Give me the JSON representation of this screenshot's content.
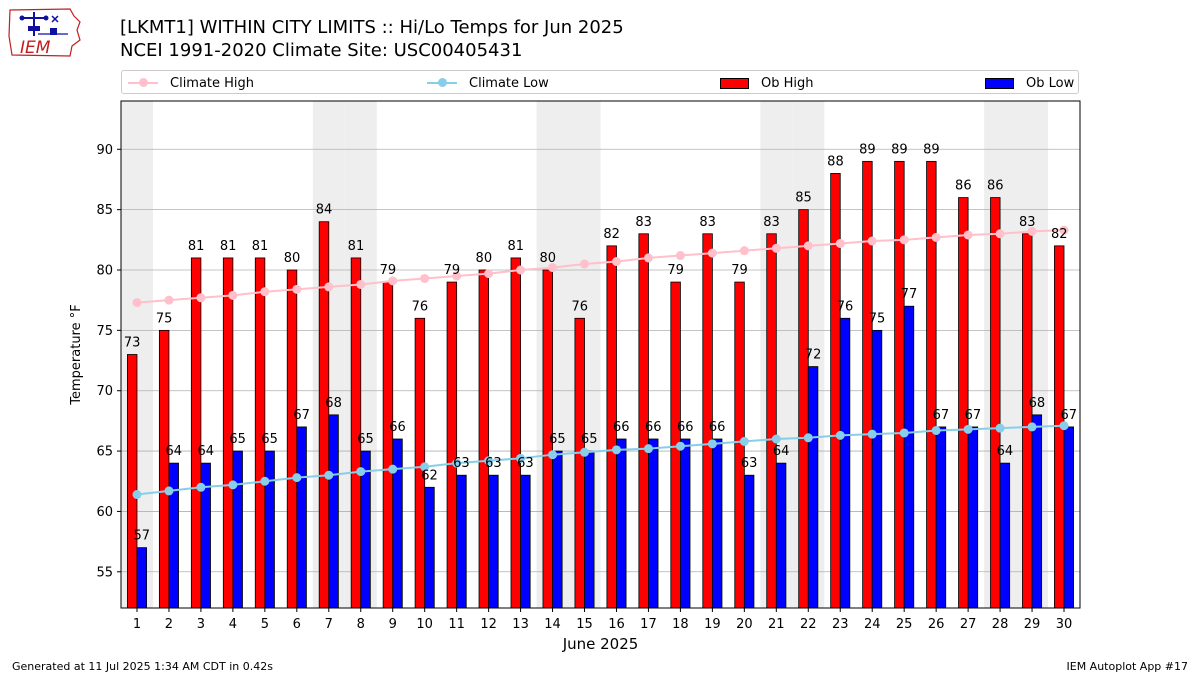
{
  "logo": {
    "text": "IEM"
  },
  "title": {
    "line1": "[LKMT1] WITHIN CITY LIMITS :: Hi/Lo Temps for Jun 2025",
    "line2": "NCEI 1991-2020 Climate Site: USC00405431"
  },
  "legend": {
    "climate_high": "Climate High",
    "climate_low": "Climate Low",
    "ob_high": "Ob High",
    "ob_low": "Ob Low"
  },
  "footer": {
    "left": "Generated at 11 Jul 2025 1:34 AM CDT in 0.42s",
    "right": "IEM Autoplot App #17"
  },
  "colors": {
    "ob_high": "#ff0000",
    "ob_low": "#0000ff",
    "climate_high": "#ffc0cb",
    "climate_low": "#87ceeb",
    "weekend_band": "#eeeeee",
    "grid": "#b0b0b0"
  },
  "chart_data": {
    "type": "bar",
    "xlabel": "June 2025",
    "ylabel": "Temperature °F",
    "ylim": [
      52,
      94
    ],
    "yticks": [
      55,
      60,
      65,
      70,
      75,
      80,
      85,
      90
    ],
    "grid": "horizontal",
    "legend_position": "top",
    "categories": [
      "1",
      "2",
      "3",
      "4",
      "5",
      "6",
      "7",
      "8",
      "9",
      "10",
      "11",
      "12",
      "13",
      "14",
      "15",
      "16",
      "17",
      "18",
      "19",
      "20",
      "21",
      "22",
      "23",
      "24",
      "25",
      "26",
      "27",
      "28",
      "29",
      "30"
    ],
    "weekend_days": [
      1,
      7,
      8,
      14,
      15,
      21,
      22,
      28,
      29
    ],
    "series": [
      {
        "name": "Ob High",
        "kind": "bar",
        "values": [
          73,
          75,
          81,
          81,
          81,
          80,
          84,
          81,
          79,
          76,
          79,
          80,
          81,
          80,
          76,
          82,
          83,
          79,
          83,
          79,
          83,
          85,
          88,
          89,
          89,
          89,
          86,
          86,
          83,
          82
        ]
      },
      {
        "name": "Ob Low",
        "kind": "bar",
        "values": [
          57,
          64,
          64,
          65,
          65,
          67,
          68,
          65,
          66,
          62,
          63,
          63,
          63,
          65,
          65,
          66,
          66,
          66,
          66,
          63,
          64,
          72,
          76,
          75,
          77,
          67,
          67,
          64,
          68,
          67
        ]
      },
      {
        "name": "Climate High",
        "kind": "line",
        "values": [
          77.3,
          77.5,
          77.7,
          77.9,
          78.2,
          78.4,
          78.6,
          78.8,
          79.1,
          79.3,
          79.5,
          79.7,
          80.0,
          80.2,
          80.5,
          80.7,
          81.0,
          81.2,
          81.4,
          81.6,
          81.8,
          82.0,
          82.2,
          82.4,
          82.5,
          82.7,
          82.9,
          83.0,
          83.2,
          83.3
        ]
      },
      {
        "name": "Climate Low",
        "kind": "line",
        "values": [
          61.4,
          61.7,
          62.0,
          62.2,
          62.5,
          62.8,
          63.0,
          63.3,
          63.5,
          63.7,
          64.0,
          64.2,
          64.4,
          64.7,
          64.9,
          65.1,
          65.2,
          65.4,
          65.6,
          65.8,
          66.0,
          66.1,
          66.3,
          66.4,
          66.5,
          66.7,
          66.8,
          66.9,
          67.0,
          67.1
        ]
      }
    ]
  }
}
